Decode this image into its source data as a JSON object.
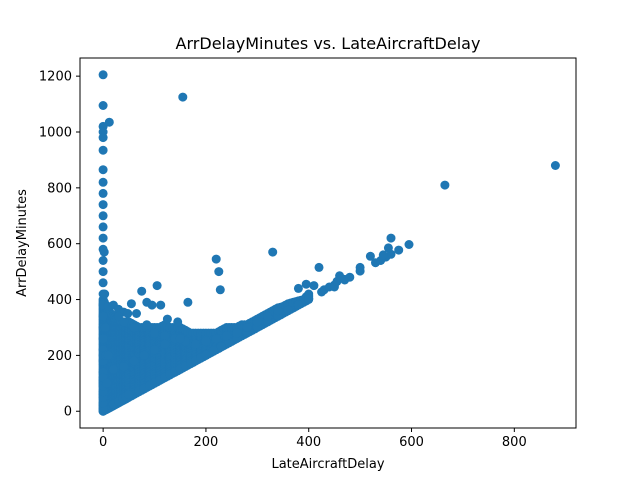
{
  "chart_data": {
    "type": "scatter",
    "title": "ArrDelayMinutes vs. LateAircraftDelay",
    "xlabel": "LateAircraftDelay",
    "ylabel": "ArrDelayMinutes",
    "xlim": [
      -45,
      920
    ],
    "ylim": [
      -60,
      1265
    ],
    "xticks": [
      0,
      200,
      400,
      600,
      800
    ],
    "yticks": [
      0,
      200,
      400,
      600,
      800,
      1000,
      1200
    ],
    "grid": false,
    "legend": "none",
    "colors": {
      "marker": "#1f77b4"
    },
    "x": [
      0,
      0,
      0,
      0,
      0,
      0,
      0,
      0,
      0,
      0,
      0,
      0,
      0,
      0,
      0,
      0,
      0,
      0,
      0,
      0,
      0,
      0,
      0,
      0,
      0,
      0,
      0,
      0,
      0,
      0,
      0,
      0,
      0,
      0,
      0,
      0,
      0,
      2,
      3,
      4,
      5,
      7,
      12,
      155,
      20,
      30,
      38,
      44,
      50,
      70,
      80,
      90,
      100,
      110,
      120,
      130,
      140,
      150,
      160,
      170,
      180,
      190,
      200,
      215,
      230,
      245,
      260,
      280,
      300,
      320,
      340,
      360,
      380,
      400,
      425,
      450,
      470,
      500,
      530,
      550,
      560,
      575,
      595,
      665,
      880,
      10,
      20,
      30,
      40,
      48,
      55,
      65,
      75,
      85,
      95,
      105,
      112,
      125,
      145,
      165,
      220,
      225,
      228,
      330,
      380,
      395,
      410,
      420,
      430,
      440,
      450,
      455,
      460,
      470,
      480,
      500,
      520,
      540,
      545,
      555,
      560,
      30,
      40,
      60,
      85,
      100,
      120,
      140,
      160,
      180,
      200,
      220,
      240,
      260,
      280,
      300,
      320,
      340,
      10,
      20,
      40,
      60,
      80,
      100,
      120,
      150
    ],
    "y": [
      1205,
      1095,
      1020,
      1000,
      980,
      935,
      865,
      820,
      780,
      740,
      700,
      660,
      620,
      580,
      540,
      500,
      460,
      420,
      380,
      340,
      300,
      260,
      220,
      180,
      140,
      100,
      60,
      20,
      0,
      10,
      30,
      50,
      70,
      90,
      110,
      120,
      200,
      570,
      420,
      300,
      200,
      100,
      1035,
      1125,
      25,
      35,
      45,
      52,
      60,
      72,
      82,
      92,
      102,
      112,
      122,
      132,
      142,
      152,
      162,
      172,
      182,
      192,
      202,
      217,
      232,
      247,
      262,
      282,
      302,
      322,
      342,
      362,
      382,
      402,
      427,
      452,
      472,
      502,
      532,
      552,
      562,
      577,
      597,
      810,
      880,
      375,
      380,
      365,
      355,
      350,
      385,
      350,
      430,
      390,
      380,
      450,
      380,
      330,
      320,
      390,
      545,
      500,
      435,
      570,
      440,
      455,
      450,
      515,
      435,
      445,
      445,
      465,
      485,
      470,
      480,
      515,
      555,
      540,
      560,
      585,
      620,
      340,
      320,
      300,
      310,
      280,
      270,
      260,
      250,
      240,
      250,
      260,
      270,
      280,
      300,
      320,
      340,
      360,
      200,
      150,
      160,
      180,
      200,
      220,
      240,
      260
    ],
    "series": [
      {
        "values_note_x": "dense band: points with y >= x forming a wedge from origin",
        "x": [
          0,
          5,
          10,
          15,
          20,
          25,
          30,
          35,
          40,
          45,
          50,
          60,
          70,
          80,
          90,
          100,
          110,
          120,
          130,
          140,
          150,
          160,
          170,
          180,
          190,
          200,
          210,
          220,
          230,
          240,
          250,
          260,
          270,
          280,
          290,
          300,
          310,
          320,
          330,
          340,
          350,
          360,
          370,
          380,
          390,
          400
        ],
        "y_min": [
          0,
          5,
          10,
          15,
          20,
          25,
          30,
          35,
          40,
          45,
          50,
          60,
          70,
          80,
          90,
          100,
          110,
          120,
          130,
          140,
          150,
          160,
          170,
          180,
          190,
          200,
          210,
          220,
          230,
          240,
          250,
          260,
          270,
          280,
          290,
          300,
          310,
          320,
          330,
          340,
          350,
          360,
          370,
          380,
          390,
          400
        ],
        "y_max": [
          400,
          380,
          360,
          350,
          340,
          330,
          330,
          320,
          310,
          320,
          320,
          310,
          300,
          300,
          300,
          300,
          300,
          310,
          300,
          300,
          300,
          290,
          280,
          280,
          280,
          280,
          280,
          280,
          290,
          300,
          300,
          300,
          310,
          310,
          320,
          330,
          340,
          350,
          360,
          370,
          375,
          385,
          390,
          395,
          400,
          420
        ]
      }
    ]
  }
}
